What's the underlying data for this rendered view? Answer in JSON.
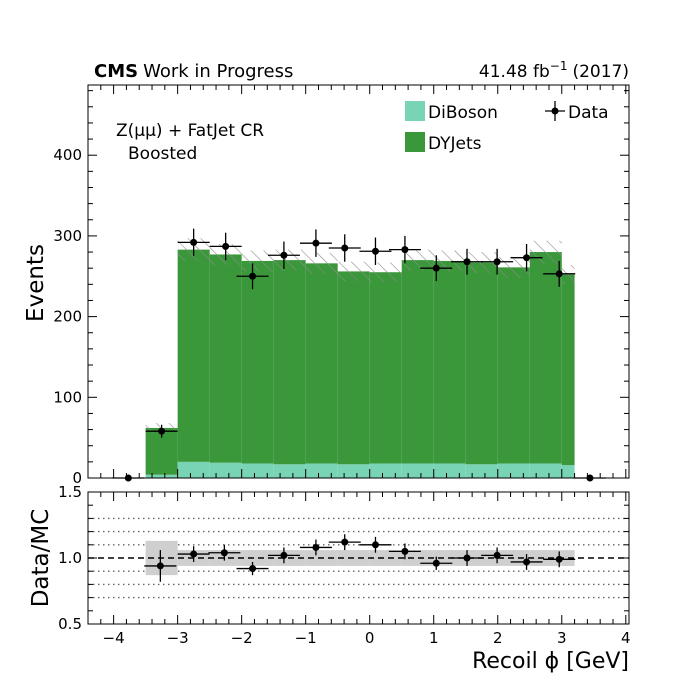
{
  "header": {
    "cms_label": "CMS",
    "wip_label": "Work in Progress",
    "lumi_value": "41.48 fb",
    "lumi_exponent": "−1",
    "lumi_year": "(2017)"
  },
  "region_label": {
    "line1": "Z(μμ) + FatJet CR",
    "line2": "Boosted"
  },
  "colors": {
    "diboson": "#79d3b5",
    "dyjets": "#3a973a",
    "uncertainty_hatch": "#8c8c8c",
    "ratio_band": "#cfcfcf"
  },
  "chart_data": [
    {
      "type": "bar",
      "stacked": true,
      "title": "",
      "xlabel": "",
      "ylabel": "Events",
      "xlim": [
        -4.4,
        4.05
      ],
      "ylim": [
        0,
        487
      ],
      "yticks": [
        0,
        100,
        200,
        300,
        400
      ],
      "bin_edges": [
        -3.5,
        -3.0,
        -2.5,
        -2.0,
        -1.5,
        -1.0,
        -0.5,
        0.0,
        0.5,
        1.0,
        1.5,
        2.0,
        2.5,
        3.0,
        3.2
      ],
      "series": [
        {
          "name": "DiBoson",
          "values": [
            4,
            20,
            19,
            18,
            17,
            18,
            17,
            18,
            18,
            18,
            17,
            18,
            18,
            16
          ]
        },
        {
          "name": "DYJets",
          "values": [
            58,
            263,
            258,
            251,
            253,
            248,
            239,
            237,
            252,
            251,
            250,
            243,
            262,
            236
          ]
        }
      ],
      "mc_uncertainty": [
        6,
        14,
        13,
        13,
        13,
        13,
        12,
        12,
        13,
        13,
        13,
        13,
        14,
        12
      ],
      "data": {
        "name": "Data",
        "x": [
          -3.77,
          -3.25,
          -2.75,
          -2.25,
          -1.83,
          -1.34,
          -0.84,
          -0.39,
          0.09,
          0.55,
          1.04,
          1.52,
          1.99,
          2.45,
          2.96,
          3.44
        ],
        "y": [
          0,
          58,
          292,
          287,
          250,
          276,
          291,
          285,
          281,
          283,
          260,
          268,
          268,
          273,
          253,
          0
        ],
        "yerr": [
          0,
          8,
          17,
          17,
          16,
          17,
          17,
          17,
          17,
          17,
          16,
          16,
          16,
          17,
          16,
          0
        ],
        "xerr": [
          0.25,
          0.25,
          0.25,
          0.25,
          0.25,
          0.25,
          0.25,
          0.25,
          0.25,
          0.25,
          0.25,
          0.25,
          0.25,
          0.25,
          0.25,
          0.25
        ]
      },
      "legend": {
        "position": "top-right",
        "entries": [
          "DiBoson",
          "Data",
          "DYJets"
        ]
      }
    },
    {
      "type": "scatter",
      "title": "",
      "xlabel": "Recoil ϕ [GeV]",
      "ylabel": "Data/MC",
      "xlim": [
        -4.4,
        4.05
      ],
      "ylim": [
        0.5,
        1.5
      ],
      "xticks": [
        -4,
        -3,
        -2,
        -1,
        0,
        1,
        2,
        3,
        4
      ],
      "xtick_labels": [
        "−4",
        "−3",
        "−2",
        "−1",
        "0",
        "1",
        "2",
        "3",
        "4"
      ],
      "yticks": [
        0.5,
        1.0,
        1.5
      ],
      "ytick_labels": [
        "0.5",
        "1.0",
        "1.5"
      ],
      "gridlines": [
        0.7,
        0.8,
        0.9,
        1.1,
        1.2,
        1.3
      ],
      "reference_line": 1.0,
      "bin_edges": [
        -3.5,
        -3.0,
        -2.5,
        -2.0,
        -1.5,
        -1.0,
        -0.5,
        0.0,
        0.5,
        1.0,
        1.5,
        2.0,
        2.5,
        3.0,
        3.2
      ],
      "band_halfwidth": [
        0.13,
        0.06,
        0.06,
        0.06,
        0.06,
        0.06,
        0.06,
        0.06,
        0.06,
        0.06,
        0.06,
        0.06,
        0.06,
        0.06
      ],
      "x": [
        -3.27,
        -2.75,
        -2.27,
        -1.83,
        -1.34,
        -0.84,
        -0.39,
        0.09,
        0.55,
        1.04,
        1.52,
        1.99,
        2.45,
        2.96
      ],
      "y": [
        0.94,
        1.03,
        1.04,
        0.92,
        1.02,
        1.08,
        1.12,
        1.1,
        1.05,
        0.96,
        1.0,
        1.02,
        0.97,
        0.99
      ],
      "yerr": [
        0.12,
        0.06,
        0.06,
        0.05,
        0.06,
        0.06,
        0.06,
        0.06,
        0.06,
        0.05,
        0.06,
        0.06,
        0.06,
        0.06
      ],
      "xerr": [
        0.25,
        0.25,
        0.25,
        0.25,
        0.25,
        0.25,
        0.25,
        0.25,
        0.25,
        0.25,
        0.25,
        0.25,
        0.25,
        0.25
      ]
    }
  ]
}
